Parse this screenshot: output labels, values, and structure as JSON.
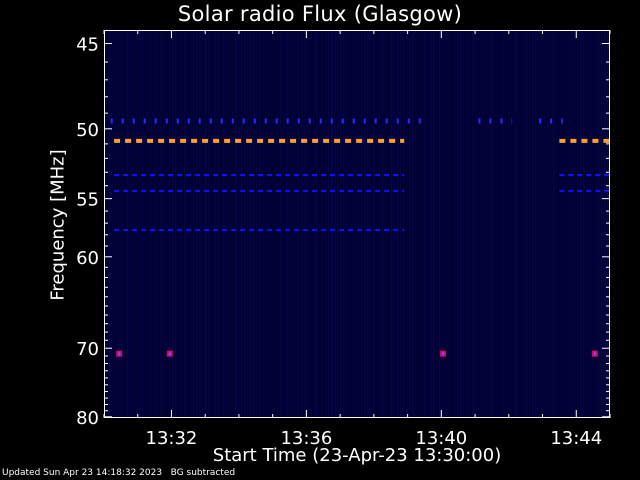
{
  "chart_data": {
    "type": "heatmap",
    "title": "Solar radio Flux (Glasgow)",
    "xlabel": "Start Time (23-Apr-23 13:30:00)",
    "ylabel": "Frequency [MHz]",
    "x_axis": {
      "unit": "minutes after 13:30",
      "range": [
        0,
        15
      ],
      "ticks": [
        {
          "value": 2,
          "label": "13:32"
        },
        {
          "value": 6,
          "label": "13:36"
        },
        {
          "value": 10,
          "label": "13:40"
        },
        {
          "value": 14,
          "label": "13:44"
        }
      ]
    },
    "y_axis": {
      "unit": "MHz",
      "range": [
        45,
        80
      ],
      "scale": "reciprocal",
      "inverted": true,
      "ticks": [
        {
          "value": 45,
          "label": "45"
        },
        {
          "value": 50,
          "label": "50"
        },
        {
          "value": 55,
          "label": "55"
        },
        {
          "value": 60,
          "label": "60"
        },
        {
          "value": 70,
          "label": "70"
        },
        {
          "value": 80,
          "label": "80"
        }
      ]
    },
    "background_color": "#000033",
    "features": [
      {
        "freq_mhz": 50.8,
        "color": "#ff9f30",
        "segments": [
          [
            0.3,
            8.9
          ],
          [
            13.5,
            15
          ]
        ]
      },
      {
        "freq_mhz": 49.5,
        "color": "#2a2aff",
        "segments": [
          [
            0.2,
            9.4
          ],
          [
            11.1,
            12.1
          ],
          [
            12.9,
            13.6
          ]
        ]
      },
      {
        "freq_mhz": 53.2,
        "color": "#1010ff",
        "segments": [
          [
            0.3,
            8.9
          ],
          [
            13.5,
            15
          ]
        ]
      },
      {
        "freq_mhz": 54.4,
        "color": "#1010ff",
        "segments": [
          [
            0.3,
            8.9
          ],
          [
            13.5,
            15
          ]
        ]
      },
      {
        "freq_mhz": 57.6,
        "color": "#1010ff",
        "segments": [
          [
            0.3,
            8.9
          ]
        ]
      }
    ],
    "bursts": [
      {
        "time_min": 0.45,
        "freq_mhz": 70.7,
        "color": "#e0005a"
      },
      {
        "time_min": 1.95,
        "freq_mhz": 70.7,
        "color": "#e0005a"
      },
      {
        "time_min": 10.05,
        "freq_mhz": 70.7,
        "color": "#e0005a"
      },
      {
        "time_min": 14.55,
        "freq_mhz": 70.7,
        "color": "#e0005a"
      }
    ],
    "colors": {
      "axis": "#ffffff",
      "grid": "none"
    }
  },
  "footer": {
    "text": "Updated Sun Apr 23 14:18:32 2023   BG subtracted"
  }
}
